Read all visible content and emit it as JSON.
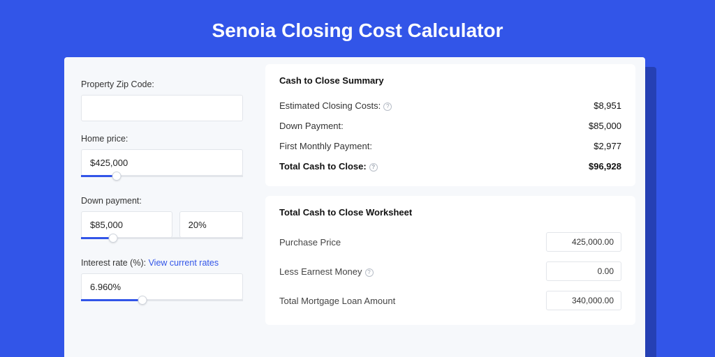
{
  "colors": {
    "page_bg": "#3255e8",
    "shadow": "#2540b4",
    "panel_bg": "#f6f8fb",
    "card_bg": "#ffffff",
    "accent": "#3255e8",
    "border": "#e2e5ea",
    "text": "#333333",
    "heading": "#111111"
  },
  "page": {
    "title": "Senoia Closing Cost Calculator"
  },
  "form": {
    "zip": {
      "label": "Property Zip Code:",
      "value": ""
    },
    "home_price": {
      "label": "Home price:",
      "value": "$425,000",
      "slider_pct": 22
    },
    "down_payment": {
      "label": "Down payment:",
      "value": "$85,000",
      "pct_value": "20%",
      "slider_pct": 20
    },
    "interest": {
      "label_prefix": "Interest rate (%): ",
      "link_text": "View current rates",
      "value": "6.960%",
      "slider_pct": 38
    }
  },
  "summary": {
    "title": "Cash to Close Summary",
    "rows": [
      {
        "label": "Estimated Closing Costs:",
        "help": true,
        "value": "$8,951",
        "bold": false
      },
      {
        "label": "Down Payment:",
        "help": false,
        "value": "$85,000",
        "bold": false
      },
      {
        "label": "First Monthly Payment:",
        "help": false,
        "value": "$2,977",
        "bold": false
      },
      {
        "label": "Total Cash to Close:",
        "help": true,
        "value": "$96,928",
        "bold": true
      }
    ]
  },
  "worksheet": {
    "title": "Total Cash to Close Worksheet",
    "rows": [
      {
        "label": "Purchase Price",
        "help": false,
        "value": "425,000.00"
      },
      {
        "label": "Less Earnest Money",
        "help": true,
        "value": "0.00"
      },
      {
        "label": "Total Mortgage Loan Amount",
        "help": false,
        "value": "340,000.00"
      }
    ]
  }
}
